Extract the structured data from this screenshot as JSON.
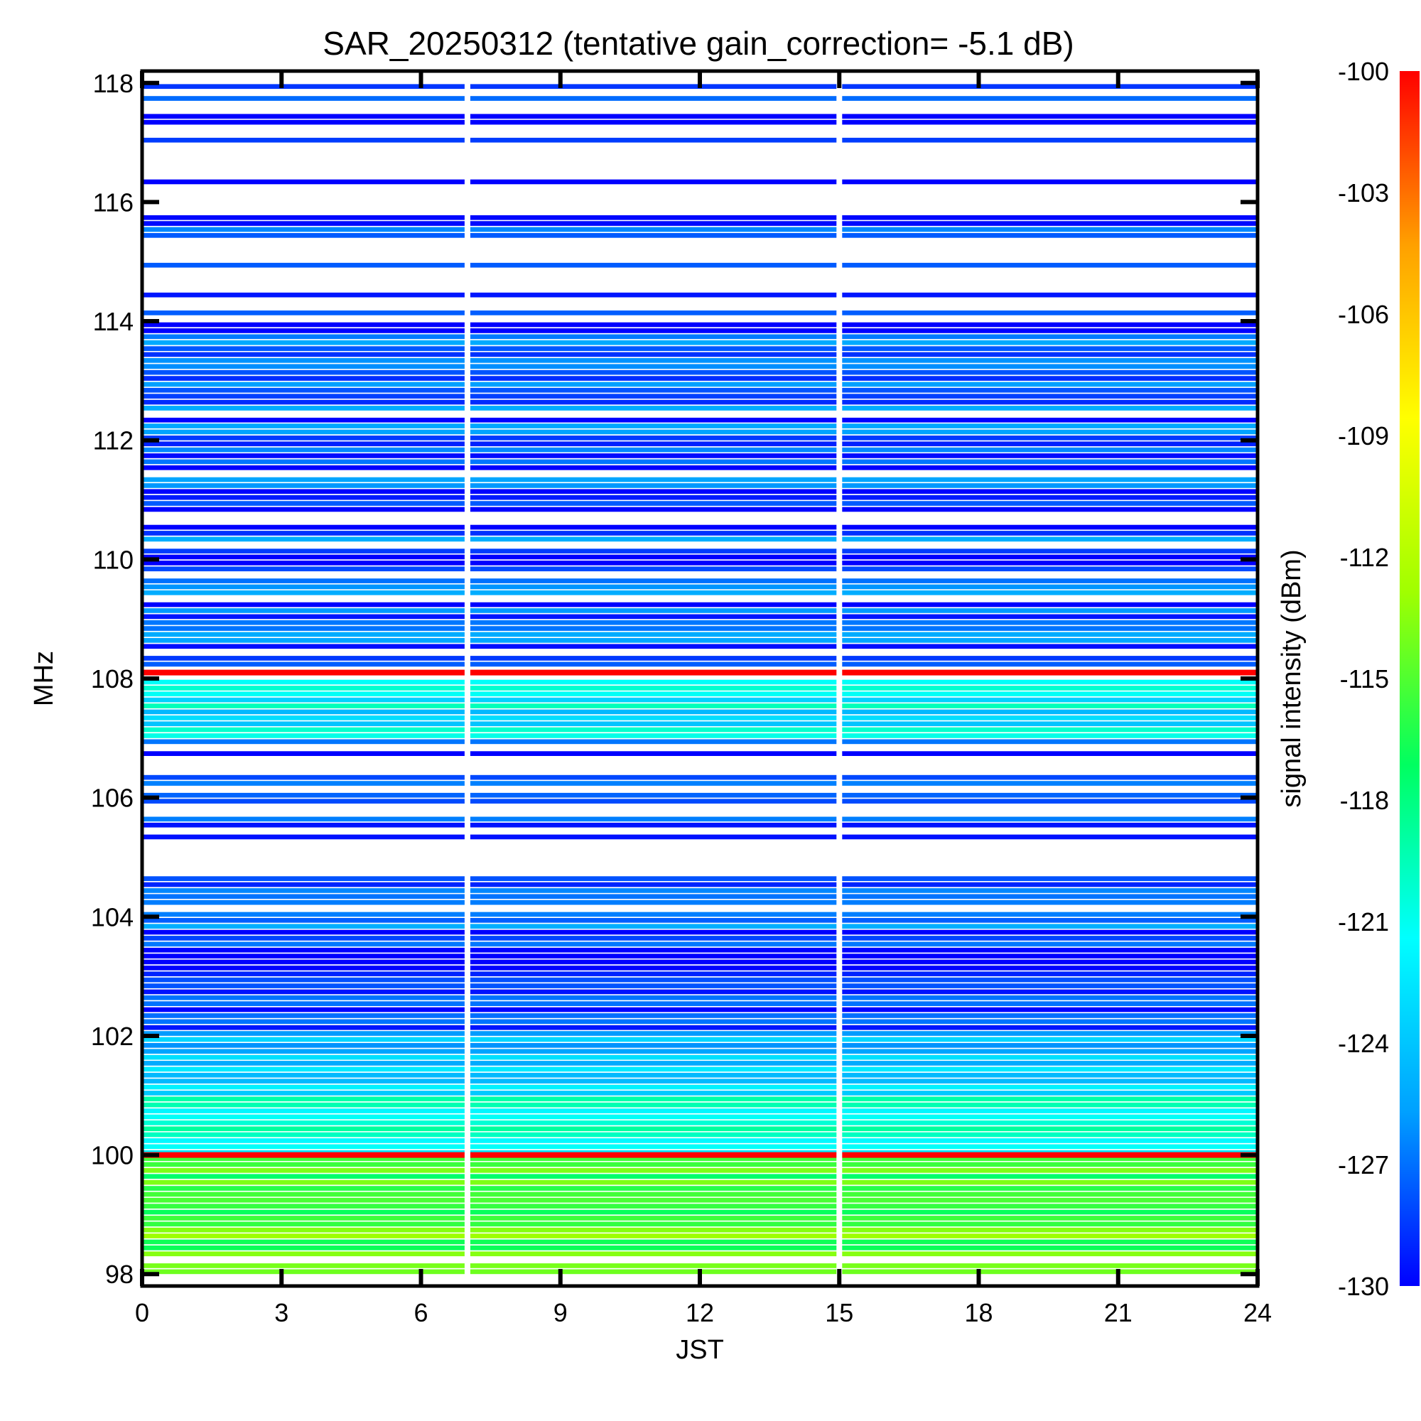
{
  "chart_data": {
    "type": "heatmap",
    "title": "SAR_20250312 (tentative gain_correction= -5.1 dB)",
    "xlabel": "JST",
    "ylabel": "MHz",
    "colorbar_label": "signal intensity (dBm)",
    "xlim": [
      0,
      24
    ],
    "ylim": [
      97.8,
      118.2
    ],
    "x_ticks": [
      "0",
      "3",
      "6",
      "9",
      "12",
      "15",
      "18",
      "21",
      "24"
    ],
    "x_tick_values": [
      0,
      3,
      6,
      9,
      12,
      15,
      18,
      21,
      24
    ],
    "y_ticks": [
      "98",
      "100",
      "102",
      "104",
      "106",
      "108",
      "110",
      "112",
      "114",
      "116",
      "118"
    ],
    "y_tick_values": [
      98,
      100,
      102,
      104,
      106,
      108,
      110,
      112,
      114,
      116,
      118
    ],
    "colorbar_range": [
      -130,
      -100
    ],
    "colorbar_ticks": [
      "-100",
      "-103",
      "-106",
      "-109",
      "-112",
      "-115",
      "-118",
      "-121",
      "-124",
      "-127",
      "-130"
    ],
    "colorbar_tick_values": [
      -100,
      -103,
      -106,
      -109,
      -112,
      -115,
      -118,
      -121,
      -124,
      -127,
      -130
    ],
    "colormap": "rainbow",
    "colormap_stops": [
      "#0000ff",
      "#00a0ff",
      "#00ffff",
      "#00ff60",
      "#a0ff00",
      "#ffff00",
      "#ffa000",
      "#ff0000"
    ],
    "grid": false,
    "data_gaps_jst": [
      7.0,
      15.0
    ],
    "strong_carriers": [
      {
        "freq_mhz": 108.1,
        "intensity_dbm": -100
      },
      {
        "freq_mhz": 100.0,
        "intensity_dbm": -100
      }
    ],
    "bands": [
      {
        "freq_range_mhz": [
          98.0,
          100.0
        ],
        "intensity_dbm": -115,
        "coverage": "continuous"
      },
      {
        "freq_range_mhz": [
          100.0,
          101.0
        ],
        "intensity_dbm": -120,
        "coverage": "continuous"
      },
      {
        "freq_range_mhz": [
          101.0,
          102.0
        ],
        "intensity_dbm": -125,
        "coverage": "continuous"
      },
      {
        "freq_range_mhz": [
          102.0,
          104.5
        ],
        "intensity_dbm": -128,
        "coverage": "partial"
      },
      {
        "freq_range_mhz": [
          104.5,
          107.0
        ],
        "intensity_dbm": -129,
        "coverage": "sparse"
      },
      {
        "freq_range_mhz": [
          107.0,
          108.0
        ],
        "intensity_dbm": -122,
        "coverage": "continuous"
      },
      {
        "freq_range_mhz": [
          108.2,
          114.0
        ],
        "intensity_dbm": -128,
        "coverage": "dense"
      },
      {
        "freq_range_mhz": [
          114.0,
          118.0
        ],
        "intensity_dbm": -129,
        "coverage": "sparse"
      }
    ]
  }
}
